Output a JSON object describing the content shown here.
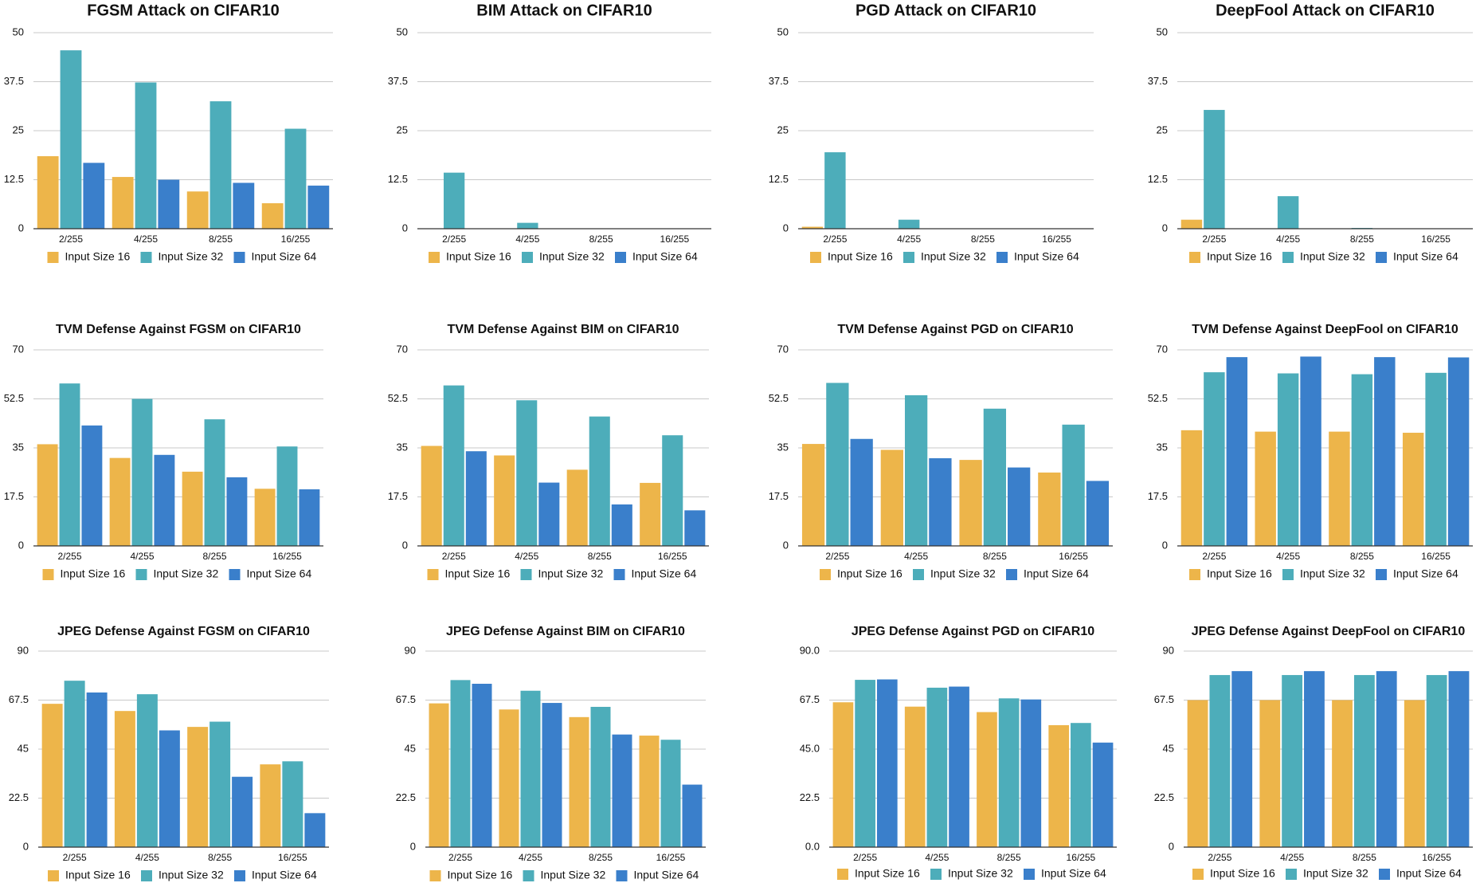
{
  "colors": {
    "Input Size 16": "#EDB54A",
    "Input Size 32": "#4DADBA",
    "Input Size 64": "#3A7FCB"
  },
  "legend": [
    "Input Size 16",
    "Input Size 32",
    "Input Size 64"
  ],
  "chart_data": [
    {
      "type": "bar",
      "title": "FGSM Attack on CIFAR10",
      "categories": [
        "2/255",
        "4/255",
        "8/255",
        "16/255"
      ],
      "yticks": [
        "0",
        "12.5",
        "25",
        "37.5",
        "50"
      ],
      "ylim": [
        0,
        50
      ],
      "grid": true,
      "legend_position": "bottom",
      "series": [
        {
          "name": "Input Size 16",
          "values": [
            18.5,
            13.2,
            9.5,
            6.5
          ]
        },
        {
          "name": "Input Size 32",
          "values": [
            45.5,
            37.3,
            32.5,
            25.5
          ]
        },
        {
          "name": "Input Size 64",
          "values": [
            16.8,
            12.5,
            11.7,
            11.0
          ]
        }
      ]
    },
    {
      "type": "bar",
      "title": "BIM Attack on CIFAR10",
      "categories": [
        "2/255",
        "4/255",
        "8/255",
        "16/255"
      ],
      "yticks": [
        "0",
        "12.5",
        "25",
        "37.5",
        "50"
      ],
      "ylim": [
        0,
        50
      ],
      "grid": true,
      "legend_position": "bottom",
      "series": [
        {
          "name": "Input Size 16",
          "values": [
            0,
            0,
            0,
            0
          ]
        },
        {
          "name": "Input Size 32",
          "values": [
            14.3,
            1.5,
            0,
            0
          ]
        },
        {
          "name": "Input Size 64",
          "values": [
            0,
            0,
            0,
            0
          ]
        }
      ]
    },
    {
      "type": "bar",
      "title": "PGD Attack on CIFAR10",
      "categories": [
        "2/255",
        "4/255",
        "8/255",
        "16/255"
      ],
      "yticks": [
        "0",
        "12.5",
        "25",
        "37.5",
        "50"
      ],
      "ylim": [
        0,
        50
      ],
      "grid": true,
      "legend_position": "bottom",
      "series": [
        {
          "name": "Input Size 16",
          "values": [
            0.5,
            0,
            0,
            0
          ]
        },
        {
          "name": "Input Size 32",
          "values": [
            19.5,
            2.3,
            0,
            0
          ]
        },
        {
          "name": "Input Size 64",
          "values": [
            0,
            0,
            0,
            0
          ]
        }
      ]
    },
    {
      "type": "bar",
      "title": "DeepFool Attack on CIFAR10",
      "categories": [
        "2/255",
        "4/255",
        "8/255",
        "16/255"
      ],
      "yticks": [
        "0",
        "12.5",
        "25",
        "37.5",
        "50"
      ],
      "ylim": [
        0,
        50
      ],
      "grid": true,
      "legend_position": "bottom",
      "series": [
        {
          "name": "Input Size 16",
          "values": [
            2.3,
            0,
            0,
            0
          ]
        },
        {
          "name": "Input Size 32",
          "values": [
            30.3,
            8.3,
            0.2,
            0
          ]
        },
        {
          "name": "Input Size 64",
          "values": [
            0,
            0,
            0,
            0
          ]
        }
      ]
    },
    {
      "type": "bar",
      "title": "TVM Defense Against FGSM on CIFAR10",
      "categories": [
        "2/255",
        "4/255",
        "8/255",
        "16/255"
      ],
      "yticks": [
        "0",
        "17.5",
        "35",
        "52.5",
        "70"
      ],
      "ylim": [
        0,
        70
      ],
      "grid": true,
      "legend_position": "bottom",
      "series": [
        {
          "name": "Input Size 16",
          "values": [
            36.3,
            31.4,
            26.5,
            20.4
          ]
        },
        {
          "name": "Input Size 32",
          "values": [
            58.0,
            52.5,
            45.2,
            35.5
          ]
        },
        {
          "name": "Input Size 64",
          "values": [
            43.0,
            32.5,
            24.5,
            20.2
          ]
        }
      ]
    },
    {
      "type": "bar",
      "title": "TVM Defense Against BIM on CIFAR10",
      "categories": [
        "2/255",
        "4/255",
        "8/255",
        "16/255"
      ],
      "yticks": [
        "0",
        "17.5",
        "35",
        "52.5",
        "70"
      ],
      "ylim": [
        0,
        70
      ],
      "grid": true,
      "legend_position": "bottom",
      "series": [
        {
          "name": "Input Size 16",
          "values": [
            35.7,
            32.3,
            27.2,
            22.5
          ]
        },
        {
          "name": "Input Size 32",
          "values": [
            57.3,
            52.0,
            46.2,
            39.5
          ]
        },
        {
          "name": "Input Size 64",
          "values": [
            33.8,
            22.6,
            14.8,
            12.7
          ]
        }
      ]
    },
    {
      "type": "bar",
      "title": "TVM Defense Against PGD on CIFAR10",
      "categories": [
        "2/255",
        "4/255",
        "8/255",
        "16/255"
      ],
      "yticks": [
        "0",
        "17.5",
        "35",
        "52.5",
        "70"
      ],
      "ylim": [
        0,
        70
      ],
      "grid": true,
      "legend_position": "bottom",
      "series": [
        {
          "name": "Input Size 16",
          "values": [
            36.4,
            34.3,
            30.7,
            26.2
          ]
        },
        {
          "name": "Input Size 32",
          "values": [
            58.2,
            53.8,
            49.0,
            43.3
          ]
        },
        {
          "name": "Input Size 64",
          "values": [
            38.2,
            31.3,
            28.0,
            23.2
          ]
        }
      ]
    },
    {
      "type": "bar",
      "title": "TVM Defense Against DeepFool on CIFAR10",
      "categories": [
        "2/255",
        "4/255",
        "8/255",
        "16/255"
      ],
      "yticks": [
        "0",
        "17.5",
        "35",
        "52.5",
        "70"
      ],
      "ylim": [
        0,
        70
      ],
      "grid": true,
      "legend_position": "bottom",
      "series": [
        {
          "name": "Input Size 16",
          "values": [
            41.3,
            40.8,
            40.8,
            40.4
          ]
        },
        {
          "name": "Input Size 32",
          "values": [
            62.0,
            61.6,
            61.3,
            61.8
          ]
        },
        {
          "name": "Input Size 64",
          "values": [
            67.4,
            67.6,
            67.4,
            67.3
          ]
        }
      ]
    },
    {
      "type": "bar",
      "title": "JPEG Defense Against FGSM on CIFAR10",
      "categories": [
        "2/255",
        "4/255",
        "8/255",
        "16/255"
      ],
      "yticks": [
        "0",
        "22.5",
        "45",
        "67.5",
        "90"
      ],
      "ylim": [
        0,
        90
      ],
      "grid": true,
      "legend_position": "bottom",
      "series": [
        {
          "name": "Input Size 16",
          "values": [
            65.8,
            62.5,
            55.2,
            38.0
          ]
        },
        {
          "name": "Input Size 32",
          "values": [
            76.4,
            70.2,
            57.6,
            39.4
          ]
        },
        {
          "name": "Input Size 64",
          "values": [
            71.0,
            53.6,
            32.3,
            15.6
          ]
        }
      ]
    },
    {
      "type": "bar",
      "title": "JPEG Defense Against BIM on CIFAR10",
      "categories": [
        "2/255",
        "4/255",
        "8/255",
        "16/255"
      ],
      "yticks": [
        "0",
        "22.5",
        "45",
        "67.5",
        "90"
      ],
      "ylim": [
        0,
        90
      ],
      "grid": true,
      "legend_position": "bottom",
      "series": [
        {
          "name": "Input Size 16",
          "values": [
            66.0,
            63.2,
            59.7,
            51.2
          ]
        },
        {
          "name": "Input Size 32",
          "values": [
            76.7,
            71.8,
            64.4,
            49.3
          ]
        },
        {
          "name": "Input Size 64",
          "values": [
            75.0,
            66.2,
            51.7,
            28.7
          ]
        }
      ]
    },
    {
      "type": "bar",
      "title": "JPEG Defense Against PGD on CIFAR10",
      "categories": [
        "2/255",
        "4/255",
        "8/255",
        "16/255"
      ],
      "yticks": [
        "0.0",
        "22.5",
        "45.0",
        "67.5",
        "90.0"
      ],
      "ylim": [
        0,
        90
      ],
      "grid": true,
      "legend_position": "bottom",
      "series": [
        {
          "name": "Input Size 16",
          "values": [
            66.5,
            64.5,
            62.0,
            56.0
          ]
        },
        {
          "name": "Input Size 32",
          "values": [
            76.8,
            73.2,
            68.3,
            57.0
          ]
        },
        {
          "name": "Input Size 64",
          "values": [
            77.0,
            73.7,
            67.8,
            48.0
          ]
        }
      ]
    },
    {
      "type": "bar",
      "title": "JPEG Defense Against DeepFool on CIFAR10",
      "categories": [
        "2/255",
        "4/255",
        "8/255",
        "16/255"
      ],
      "yticks": [
        "0",
        "22.5",
        "45",
        "67.5",
        "90"
      ],
      "ylim": [
        0,
        90
      ],
      "grid": true,
      "legend_position": "bottom",
      "series": [
        {
          "name": "Input Size 16",
          "values": [
            67.5,
            67.5,
            67.5,
            67.5
          ]
        },
        {
          "name": "Input Size 32",
          "values": [
            79.0,
            79.0,
            79.0,
            79.0
          ]
        },
        {
          "name": "Input Size 64",
          "values": [
            80.8,
            80.8,
            80.8,
            80.8
          ]
        }
      ]
    }
  ]
}
